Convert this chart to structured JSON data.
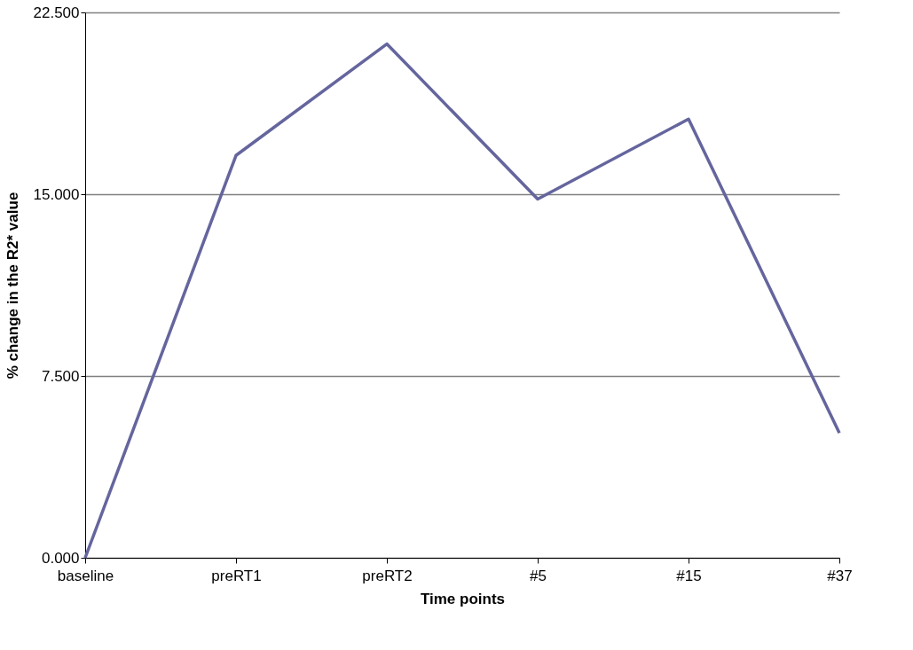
{
  "chart_data": {
    "type": "line",
    "xlabel": "Time points",
    "ylabel": "% change in the R2* value",
    "categories": [
      "baseline",
      "preRT1",
      "preRT2",
      "#5",
      "#15",
      "#37"
    ],
    "series": [
      {
        "color": "#65659e",
        "values": [
          0,
          16.6,
          21.2,
          14.8,
          18.1,
          5.15
        ]
      }
    ],
    "ylim": [
      0,
      22.5
    ],
    "yticks": [
      {
        "value": 0,
        "label": "0.000"
      },
      {
        "value": 7.5,
        "label": "7.500"
      },
      {
        "value": 15,
        "label": "15.000"
      },
      {
        "value": 22.5,
        "label": "22.500"
      }
    ],
    "grid": "y",
    "marker": "none",
    "line_style": "solid"
  }
}
